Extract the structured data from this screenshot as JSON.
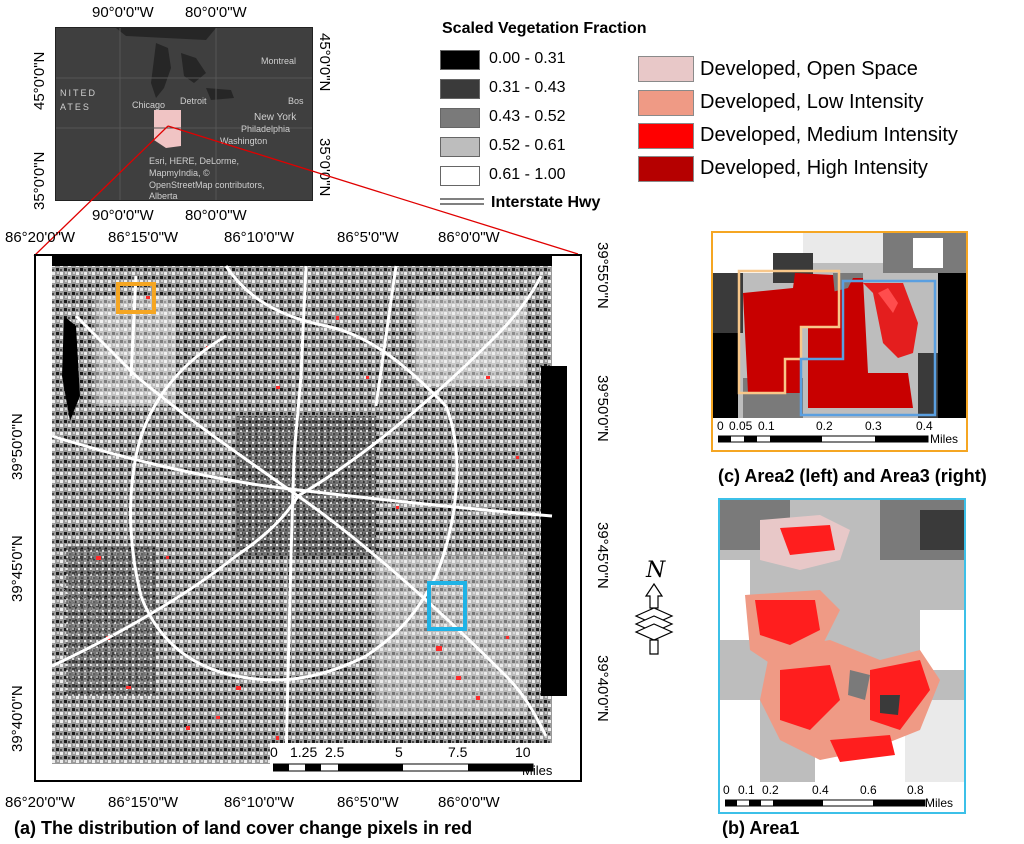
{
  "legend": {
    "title": "Scaled Vegetation Fraction",
    "classes": [
      {
        "label": "0.00 - 0.31",
        "color": "#000000"
      },
      {
        "label": "0.31 - 0.43",
        "color": "#3a3a3a"
      },
      {
        "label": "0.43 - 0.52",
        "color": "#7a7a7a"
      },
      {
        "label": "0.52 - 0.61",
        "color": "#bdbdbd"
      },
      {
        "label": "0.61 - 1.00",
        "color": "#ffffff"
      }
    ],
    "highway_label": "Interstate Hwy"
  },
  "developed_legend": [
    {
      "label": "Developed, Open Space",
      "color": "#e8c8c8"
    },
    {
      "label": "Developed, Low Intensity",
      "color": "#ef9a85"
    },
    {
      "label": "Developed, Medium Intensity",
      "color": "#ff0000"
    },
    {
      "label": "Developed, High Intensity",
      "color": "#b50000"
    }
  ],
  "inset": {
    "top_ticks": [
      "90°0'0\"W",
      "80°0'0\"W"
    ],
    "bottom_ticks": [
      "90°0'0\"W",
      "80°0'0\"W"
    ],
    "left_ticks": [
      "45°0'0\"N",
      "35°0'0\"N"
    ],
    "right_ticks": [
      "45°0'0\"N",
      "35°0'0\"N"
    ],
    "places": [
      "Montreal",
      "Bos",
      "NITED",
      "ATES",
      "Chicago",
      "Detroit",
      "New York",
      "Philadelphia",
      "Washington"
    ],
    "credit": [
      "Esri, HERE, DeLorme,",
      "MapmyIndia, ©",
      "OpenStreetMap contributors,",
      "Alberta"
    ]
  },
  "main_map": {
    "top_ticks": [
      "86°20'0\"W",
      "86°15'0\"W",
      "86°10'0\"W",
      "86°5'0\"W",
      "86°0'0\"W"
    ],
    "bottom_ticks": [
      "86°20'0\"W",
      "86°15'0\"W",
      "86°10'0\"W",
      "86°5'0\"W",
      "86°0'0\"W"
    ],
    "left_ticks": [
      "39°50'0\"N",
      "39°45'0\"N",
      "39°40'0\"N"
    ],
    "right_ticks": [
      "39°55'0\"N",
      "39°50'0\"N",
      "39°45'0\"N",
      "39°40'0\"N"
    ],
    "scale_values": [
      "0",
      "1.25",
      "2.5",
      "5",
      "7.5",
      "10"
    ],
    "scale_unit": "Miles",
    "area2_color": "#f5a623",
    "area1_color": "#1fb3e6"
  },
  "panel_c": {
    "scale_values": [
      "0",
      "0.05",
      "0.1",
      "0.2",
      "0.3",
      "0.4"
    ],
    "scale_unit": "Miles",
    "caption": "(c) Area2 (left) and Area3 (right)"
  },
  "panel_b": {
    "scale_values": [
      "0",
      "0.1",
      "0.2",
      "0.4",
      "0.6",
      "0.8"
    ],
    "scale_unit": "Miles",
    "caption": "(b) Area1"
  },
  "north_arrow_letter": "N",
  "caption_a": "(a) The distribution of land cover change pixels in red"
}
